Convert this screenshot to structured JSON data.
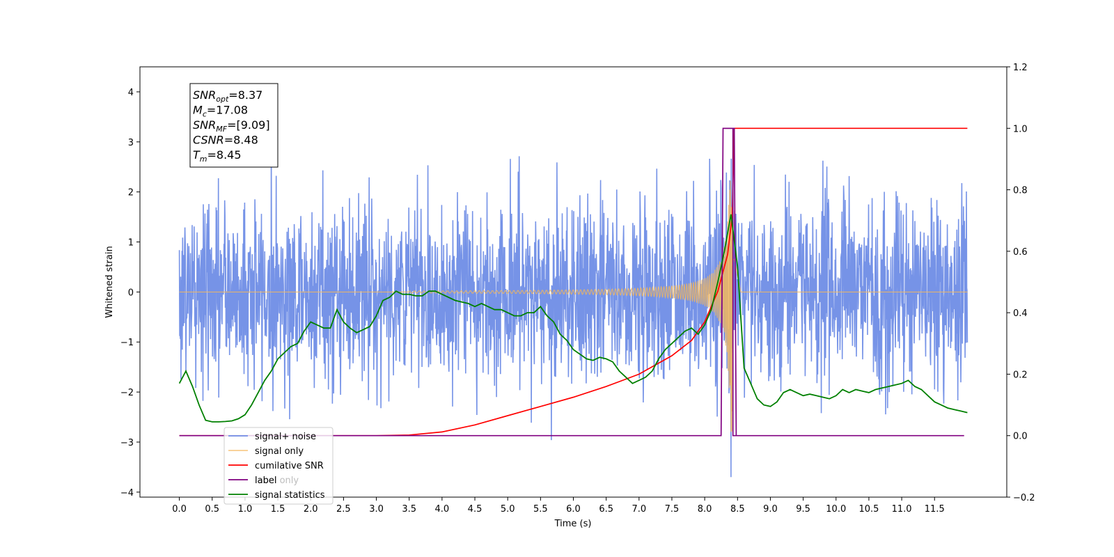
{
  "chart_data": {
    "type": "line",
    "xlabel": "Time (s)",
    "ylabel": "Whitened strain",
    "xlim": [
      -0.6,
      12.6
    ],
    "ylim": [
      -4.1,
      4.5
    ],
    "y2lim": [
      -0.2,
      1.2
    ],
    "x_ticks": [
      "0.0",
      "0.5",
      "1.0",
      "1.5",
      "2.0",
      "2.5",
      "3.0",
      "3.5",
      "4.0",
      "4.5",
      "5.0",
      "5.5",
      "6.0",
      "6.5",
      "7.0",
      "7.5",
      "8.0",
      "8.5",
      "9.0",
      "9.5",
      "10.0",
      "10.5",
      "11.0",
      "11.5"
    ],
    "y_ticks": [
      "−4",
      "−3",
      "−2",
      "−1",
      "0",
      "1",
      "2",
      "3",
      "4"
    ],
    "y2_ticks": [
      "−0.2",
      "0.0",
      "0.2",
      "0.4",
      "0.6",
      "0.8",
      "1.0",
      "1.2"
    ],
    "grid": false,
    "legend_placement": "lower-left",
    "annotation": [
      {
        "main": "SNR",
        "sub": "opt",
        "rest": "=8.37"
      },
      {
        "main": "M",
        "sub": "c",
        "rest": "=17.08"
      },
      {
        "main": "SNR",
        "sub": "MF",
        "rest": "=[9.09]"
      },
      {
        "main": "CSNR",
        "sub": "",
        "rest": "=8.48"
      },
      {
        "main": "T",
        "sub": "m",
        "rest": "=8.45"
      }
    ],
    "series": [
      {
        "name": "signal+ noise",
        "color": "#6f8de6",
        "axis": "left",
        "noise_std": 0.9,
        "x_range": [
          0.0,
          12.0
        ]
      },
      {
        "name": "signal only",
        "color": "#f5b75a",
        "axis": "left",
        "chirp_end": 8.45
      },
      {
        "name": "cumilative SNR",
        "color": "#ff0000",
        "axis": "right",
        "x": [
          0.0,
          3.0,
          3.5,
          4.0,
          4.5,
          5.0,
          5.5,
          6.0,
          6.5,
          7.0,
          7.5,
          7.8,
          8.0,
          8.2,
          8.35,
          8.42,
          8.45,
          12.0
        ],
        "y": [
          0.0,
          0.0,
          0.002,
          0.012,
          0.035,
          0.065,
          0.095,
          0.125,
          0.16,
          0.2,
          0.26,
          0.31,
          0.37,
          0.47,
          0.59,
          0.72,
          1.0,
          1.0
        ]
      },
      {
        "name": "label",
        "color": "#800080",
        "axis": "right",
        "x": [
          0.0,
          8.25,
          8.28,
          8.45,
          8.48,
          11.95
        ],
        "y": [
          0.0,
          0.0,
          1.0,
          1.0,
          0.0,
          0.0
        ]
      },
      {
        "name": "label only",
        "color": "#800080",
        "axis": "right",
        "hidden": true,
        "x": [
          8.3,
          8.43,
          8.43,
          8.48
        ],
        "y": [
          1.0,
          1.0,
          0.0,
          0.0
        ]
      },
      {
        "name": "signal statistics",
        "color": "#008000",
        "axis": "right",
        "x": [
          0.0,
          0.1,
          0.2,
          0.3,
          0.4,
          0.5,
          0.6,
          0.7,
          0.8,
          0.9,
          1.0,
          1.1,
          1.2,
          1.3,
          1.4,
          1.5,
          1.6,
          1.7,
          1.8,
          1.9,
          2.0,
          2.1,
          2.2,
          2.3,
          2.4,
          2.5,
          2.6,
          2.7,
          2.8,
          2.9,
          3.0,
          3.1,
          3.2,
          3.3,
          3.4,
          3.5,
          3.6,
          3.7,
          3.8,
          3.9,
          4.0,
          4.1,
          4.2,
          4.3,
          4.4,
          4.5,
          4.6,
          4.7,
          4.8,
          4.9,
          5.0,
          5.1,
          5.2,
          5.3,
          5.4,
          5.5,
          5.6,
          5.7,
          5.8,
          5.9,
          6.0,
          6.1,
          6.2,
          6.3,
          6.4,
          6.5,
          6.6,
          6.7,
          6.8,
          6.9,
          7.0,
          7.1,
          7.2,
          7.3,
          7.4,
          7.5,
          7.6,
          7.7,
          7.8,
          7.9,
          8.0,
          8.1,
          8.2,
          8.3,
          8.35,
          8.4,
          8.5,
          8.6,
          8.7,
          8.8,
          8.9,
          9.0,
          9.1,
          9.2,
          9.3,
          9.4,
          9.5,
          9.6,
          9.7,
          9.8,
          9.9,
          10.0,
          10.1,
          10.2,
          10.3,
          10.4,
          10.5,
          10.6,
          10.7,
          10.8,
          10.9,
          11.0,
          11.1,
          11.2,
          11.3,
          11.4,
          11.5,
          11.6,
          11.7,
          11.8,
          11.9,
          12.0
        ],
        "y": [
          0.17,
          0.21,
          0.16,
          0.1,
          0.05,
          0.045,
          0.045,
          0.046,
          0.048,
          0.055,
          0.068,
          0.1,
          0.14,
          0.18,
          0.21,
          0.25,
          0.27,
          0.29,
          0.3,
          0.34,
          0.37,
          0.36,
          0.35,
          0.35,
          0.41,
          0.37,
          0.35,
          0.335,
          0.345,
          0.355,
          0.39,
          0.44,
          0.45,
          0.47,
          0.46,
          0.46,
          0.455,
          0.455,
          0.47,
          0.47,
          0.46,
          0.45,
          0.44,
          0.435,
          0.43,
          0.42,
          0.43,
          0.42,
          0.41,
          0.41,
          0.4,
          0.39,
          0.39,
          0.4,
          0.4,
          0.42,
          0.39,
          0.37,
          0.33,
          0.31,
          0.28,
          0.265,
          0.25,
          0.245,
          0.255,
          0.25,
          0.24,
          0.21,
          0.19,
          0.17,
          0.18,
          0.19,
          0.21,
          0.25,
          0.28,
          0.3,
          0.32,
          0.34,
          0.35,
          0.33,
          0.36,
          0.41,
          0.5,
          0.6,
          0.66,
          0.72,
          0.55,
          0.22,
          0.17,
          0.12,
          0.1,
          0.095,
          0.11,
          0.14,
          0.15,
          0.14,
          0.13,
          0.135,
          0.13,
          0.125,
          0.12,
          0.13,
          0.15,
          0.14,
          0.15,
          0.145,
          0.14,
          0.15,
          0.155,
          0.16,
          0.165,
          0.17,
          0.18,
          0.16,
          0.15,
          0.13,
          0.11,
          0.1,
          0.09,
          0.085,
          0.08,
          0.075
        ]
      }
    ]
  }
}
